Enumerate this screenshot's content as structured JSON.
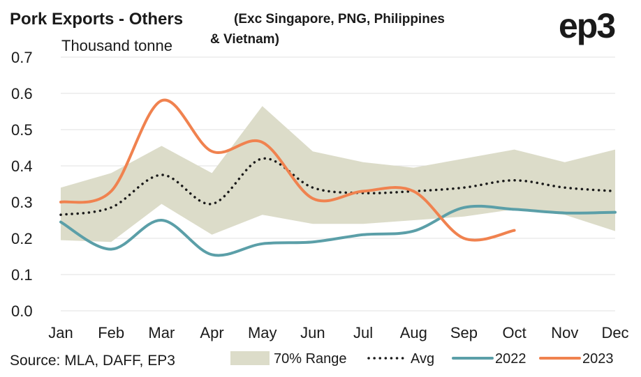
{
  "header": {
    "title": "Pork Exports - Others",
    "subtitle_line1": "(Exc Singapore, PNG, Philippines",
    "subtitle_line2": "& Vietnam)",
    "logo": "ep3"
  },
  "footer": {
    "source": "Source: MLA, DAFF, EP3"
  },
  "colors": {
    "range": "#dcdcc9",
    "avg": "#1a1a1a",
    "s2022": "#5b9fa8",
    "s2023": "#f0824f",
    "grid": "#e2e2e2"
  },
  "chart_data": {
    "type": "line",
    "ylabel": "Thousand tonne",
    "ylim": [
      0,
      0.7
    ],
    "yticks": [
      "0.0",
      "0.1",
      "0.2",
      "0.3",
      "0.4",
      "0.5",
      "0.6",
      "0.7"
    ],
    "categories": [
      "Jan",
      "Feb",
      "Mar",
      "Apr",
      "May",
      "Jun",
      "Jul",
      "Aug",
      "Sep",
      "Oct",
      "Nov",
      "Dec"
    ],
    "grid": "horizontal",
    "legend_position": "bottom",
    "range_band": {
      "name": "70% Range",
      "upper": [
        0.34,
        0.38,
        0.455,
        0.38,
        0.565,
        0.44,
        0.41,
        0.395,
        0.42,
        0.445,
        0.41,
        0.445
      ],
      "lower": [
        0.195,
        0.19,
        0.295,
        0.21,
        0.265,
        0.24,
        0.24,
        0.25,
        0.26,
        0.28,
        0.265,
        0.22
      ]
    },
    "series": [
      {
        "name": "Avg",
        "style": "dotted",
        "values": [
          0.265,
          0.285,
          0.375,
          0.295,
          0.42,
          0.34,
          0.325,
          0.33,
          0.34,
          0.36,
          0.34,
          0.33
        ]
      },
      {
        "name": "2022",
        "style": "solid",
        "values": [
          0.245,
          0.17,
          0.25,
          0.155,
          0.185,
          0.19,
          0.21,
          0.22,
          0.285,
          0.28,
          0.27,
          0.272
        ]
      },
      {
        "name": "2023",
        "style": "solid",
        "values": [
          0.3,
          0.33,
          0.58,
          0.44,
          0.465,
          0.31,
          0.33,
          0.33,
          0.2,
          0.222,
          null,
          null
        ]
      }
    ]
  }
}
